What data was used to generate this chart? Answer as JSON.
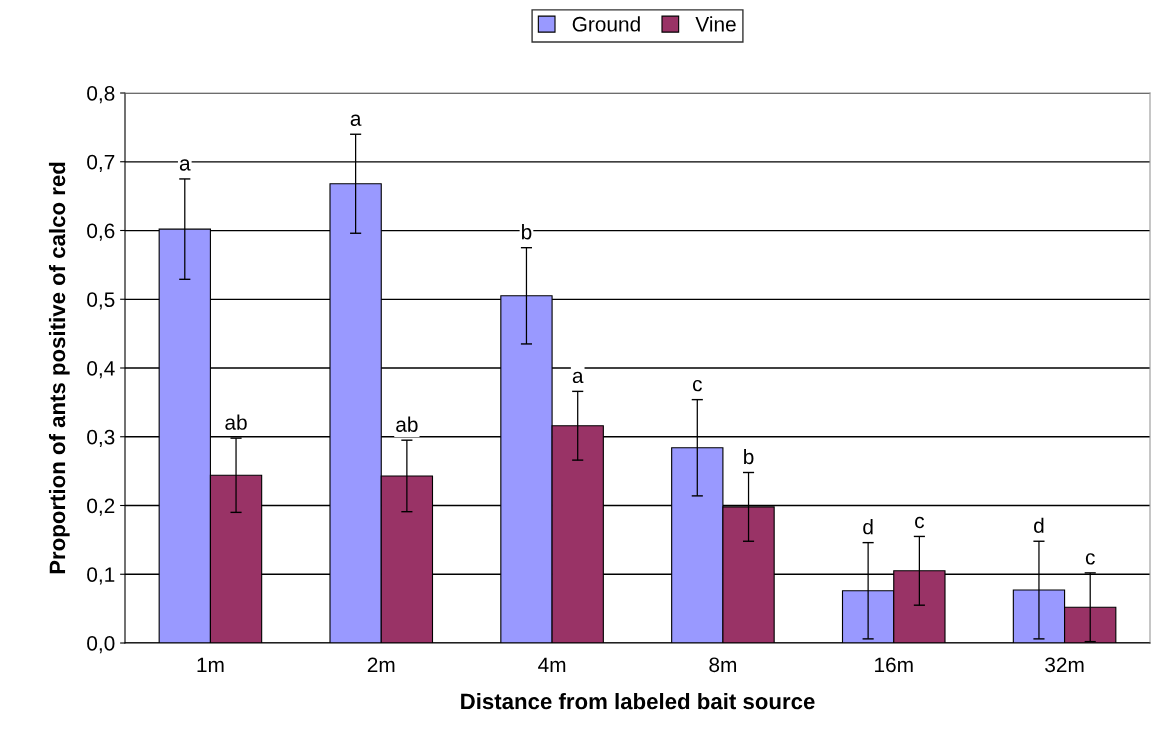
{
  "chart_data": {
    "type": "bar",
    "xlabel": "Distance from labeled bait source",
    "ylabel": "Proportion of ants positive of calco red",
    "categories": [
      "1m",
      "2m",
      "4m",
      "8m",
      "16m",
      "32m"
    ],
    "series": [
      {
        "name": "Ground",
        "color": "#9999ff",
        "values": [
          0.602,
          0.668,
          0.505,
          0.284,
          0.076,
          0.077
        ],
        "errors": [
          0.073,
          0.072,
          0.07,
          0.07,
          0.07,
          0.071
        ]
      },
      {
        "name": "Vine",
        "color": "#993366",
        "values": [
          0.244,
          0.243,
          0.316,
          0.198,
          0.105,
          0.052
        ],
        "errors": [
          0.054,
          0.052,
          0.05,
          0.05,
          0.05,
          0.05
        ]
      }
    ],
    "ylim": [
      0,
      0.8
    ],
    "yticks": [
      {
        "value": 0,
        "label": "0,0"
      },
      {
        "value": 0.1,
        "label": "0,1"
      },
      {
        "value": 0.2,
        "label": "0,2"
      },
      {
        "value": 0.3,
        "label": "0,3"
      },
      {
        "value": 0.4,
        "label": "0,4"
      },
      {
        "value": 0.5,
        "label": "0,5"
      },
      {
        "value": 0.6,
        "label": "0,6"
      },
      {
        "value": 0.7,
        "label": "0,7"
      },
      {
        "value": 0.8,
        "label": "0,8"
      }
    ],
    "grid": "y",
    "legend": "top",
    "annotations": [
      {
        "text": "a",
        "x": "1m",
        "y": 0.602
      },
      {
        "text": "ab",
        "x": "1m",
        "y": 0.244
      },
      {
        "text": "a",
        "x": "2m",
        "y": 0.668
      },
      {
        "text": "ab",
        "x": "2m",
        "y": 0.243
      },
      {
        "text": "b",
        "x": "4m",
        "y": 0.505
      },
      {
        "text": "a",
        "x": "4m",
        "y": 0.316
      },
      {
        "text": "c",
        "x": "8m",
        "y": 0.284
      },
      {
        "text": "b",
        "x": "8m",
        "y": 0.198
      },
      {
        "text": "d",
        "x": "16m",
        "y": 0.076
      },
      {
        "text": "c",
        "x": "16m",
        "y": 0.105
      },
      {
        "text": "d",
        "x": "32m",
        "y": 0.077
      },
      {
        "text": "c",
        "x": "32m",
        "y": 0.052
      }
    ]
  }
}
